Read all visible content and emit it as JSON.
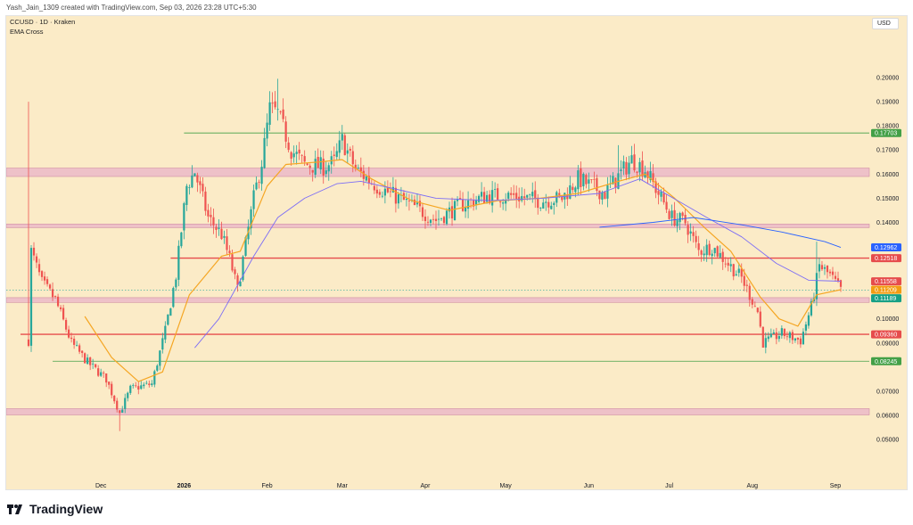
{
  "attribution": "Yash_Jain_1309 created with TradingView.com, Sep 03, 2026 23:28 UTC+5:30",
  "symbol_label": "CCUSD · 1D · Kraken",
  "indicator_label": "EMA Cross",
  "currency_button": "USD",
  "brand": "TradingView",
  "colors": {
    "background": "#fbebc7",
    "up_candle": "#26a69a",
    "down_candle": "#ef5350",
    "ema_fast": "#f5a623",
    "ema_slow": "#7b6cf6",
    "zone_fill": "#e9b3c8",
    "red_level": "#e64c4c",
    "green_level": "#43a047"
  },
  "chart_data": {
    "type": "candlestick",
    "title": "CCUSD · 1D · Kraken",
    "ylim": [
      0.0445,
      0.2085
    ],
    "y_ticks": [
      "0.20000",
      "0.19000",
      "0.18000",
      "0.17000",
      "0.16000",
      "0.15000",
      "0.14000",
      "0.10000",
      "0.09000",
      "0.07000",
      "0.06000",
      "0.05000"
    ],
    "x_labels": [
      {
        "label": "Dec",
        "date": "2025-12-01"
      },
      {
        "label": "2026",
        "date": "2026-01-01"
      },
      {
        "label": "Feb",
        "date": "2026-02-01"
      },
      {
        "label": "Mar",
        "date": "2026-03-01"
      },
      {
        "label": "Apr",
        "date": "2026-04-01"
      },
      {
        "label": "May",
        "date": "2026-05-01"
      },
      {
        "label": "Jun",
        "date": "2026-06-01"
      },
      {
        "label": "Jul",
        "date": "2026-07-01"
      },
      {
        "label": "Aug",
        "date": "2026-08-01"
      },
      {
        "label": "Sep",
        "date": "2026-09-01"
      }
    ],
    "date_range": [
      "2025-11-04",
      "2026-09-03"
    ],
    "price_path": [
      [
        "2025-11-04",
        0.091
      ],
      [
        "2025-11-05",
        0.128
      ],
      [
        "2025-11-09",
        0.115
      ],
      [
        "2025-11-14",
        0.108
      ],
      [
        "2025-11-20",
        0.09
      ],
      [
        "2025-11-26",
        0.082
      ],
      [
        "2025-12-03",
        0.075
      ],
      [
        "2025-12-08",
        0.061
      ],
      [
        "2025-12-12",
        0.071
      ],
      [
        "2025-12-20",
        0.073
      ],
      [
        "2025-12-25",
        0.095
      ],
      [
        "2025-12-29",
        0.118
      ],
      [
        "2026-01-02",
        0.155
      ],
      [
        "2026-01-05",
        0.161
      ],
      [
        "2026-01-10",
        0.142
      ],
      [
        "2026-01-15",
        0.135
      ],
      [
        "2026-01-18",
        0.125
      ],
      [
        "2026-01-21",
        0.112
      ],
      [
        "2026-01-27",
        0.15
      ],
      [
        "2026-01-30",
        0.165
      ],
      [
        "2026-02-02",
        0.187
      ],
      [
        "2026-02-05",
        0.185
      ],
      [
        "2026-02-10",
        0.17
      ],
      [
        "2026-02-15",
        0.164
      ],
      [
        "2026-02-22",
        0.163
      ],
      [
        "2026-02-26",
        0.165
      ],
      [
        "2026-03-01",
        0.174
      ],
      [
        "2026-03-06",
        0.162
      ],
      [
        "2026-03-14",
        0.155
      ],
      [
        "2026-03-22",
        0.15
      ],
      [
        "2026-03-30",
        0.145
      ],
      [
        "2026-04-05",
        0.141
      ],
      [
        "2026-04-14",
        0.147
      ],
      [
        "2026-04-24",
        0.151
      ],
      [
        "2026-05-04",
        0.151
      ],
      [
        "2026-05-14",
        0.149
      ],
      [
        "2026-05-22",
        0.15
      ],
      [
        "2026-05-28",
        0.158
      ],
      [
        "2026-06-02",
        0.155
      ],
      [
        "2026-06-07",
        0.152
      ],
      [
        "2026-06-12",
        0.159
      ],
      [
        "2026-06-17",
        0.166
      ],
      [
        "2026-06-22",
        0.162
      ],
      [
        "2026-06-27",
        0.152
      ],
      [
        "2026-07-02",
        0.142
      ],
      [
        "2026-07-07",
        0.14
      ],
      [
        "2026-07-12",
        0.128
      ],
      [
        "2026-07-17",
        0.13
      ],
      [
        "2026-07-22",
        0.124
      ],
      [
        "2026-07-28",
        0.117
      ],
      [
        "2026-08-03",
        0.103
      ],
      [
        "2026-08-05",
        0.09
      ],
      [
        "2026-08-12",
        0.094
      ],
      [
        "2026-08-19",
        0.091
      ],
      [
        "2026-08-23",
        0.105
      ],
      [
        "2026-08-26",
        0.122
      ],
      [
        "2026-08-30",
        0.118
      ],
      [
        "2026-09-03",
        0.1119
      ]
    ],
    "candle_extremes": [
      {
        "date": "2025-11-04",
        "high": 0.19
      },
      {
        "date": "2025-12-08",
        "low": 0.0535
      },
      {
        "date": "2026-02-05",
        "high": 0.1995
      },
      {
        "date": "2026-06-12",
        "high": 0.172
      },
      {
        "date": "2026-08-05",
        "low": 0.0885
      },
      {
        "date": "2026-08-25",
        "high": 0.132
      }
    ],
    "series": [
      {
        "name": "EMA fast",
        "points": [
          [
            "2025-11-25",
            0.101
          ],
          [
            "2025-12-05",
            0.084
          ],
          [
            "2025-12-15",
            0.074
          ],
          [
            "2025-12-24",
            0.078
          ],
          [
            "2026-01-03",
            0.11
          ],
          [
            "2026-01-15",
            0.126
          ],
          [
            "2026-01-22",
            0.128
          ],
          [
            "2026-02-01",
            0.155
          ],
          [
            "2026-02-08",
            0.164
          ],
          [
            "2026-02-20",
            0.165
          ],
          [
            "2026-03-01",
            0.166
          ],
          [
            "2026-03-12",
            0.158
          ],
          [
            "2026-03-27",
            0.149
          ],
          [
            "2026-04-10",
            0.145
          ],
          [
            "2026-04-28",
            0.149
          ],
          [
            "2026-05-14",
            0.15
          ],
          [
            "2026-05-28",
            0.152
          ],
          [
            "2026-06-12",
            0.157
          ],
          [
            "2026-06-22",
            0.16
          ],
          [
            "2026-07-03",
            0.15
          ],
          [
            "2026-07-14",
            0.138
          ],
          [
            "2026-07-24",
            0.128
          ],
          [
            "2026-08-04",
            0.109
          ],
          [
            "2026-08-11",
            0.1
          ],
          [
            "2026-08-18",
            0.097
          ],
          [
            "2026-08-25",
            0.11
          ],
          [
            "2026-09-03",
            0.1121
          ]
        ]
      },
      {
        "name": "EMA slow",
        "points": [
          [
            "2026-01-05",
            0.088
          ],
          [
            "2026-01-14",
            0.1
          ],
          [
            "2026-01-27",
            0.126
          ],
          [
            "2026-02-05",
            0.142
          ],
          [
            "2026-02-15",
            0.15
          ],
          [
            "2026-02-27",
            0.156
          ],
          [
            "2026-03-08",
            0.157
          ],
          [
            "2026-03-20",
            0.154
          ],
          [
            "2026-04-05",
            0.15
          ],
          [
            "2026-04-25",
            0.149
          ],
          [
            "2026-05-15",
            0.15
          ],
          [
            "2026-06-05",
            0.152
          ],
          [
            "2026-06-20",
            0.158
          ],
          [
            "2026-07-01",
            0.151
          ],
          [
            "2026-07-15",
            0.142
          ],
          [
            "2026-07-28",
            0.134
          ],
          [
            "2026-08-10",
            0.123
          ],
          [
            "2026-08-22",
            0.116
          ],
          [
            "2026-09-03",
            0.1156
          ]
        ]
      },
      {
        "name": "Long-term trend",
        "points": [
          [
            "2026-06-05",
            0.138
          ],
          [
            "2026-06-25",
            0.14
          ],
          [
            "2026-07-10",
            0.142
          ],
          [
            "2026-07-28",
            0.139
          ],
          [
            "2026-08-12",
            0.136
          ],
          [
            "2026-08-28",
            0.132
          ],
          [
            "2026-09-03",
            0.1296
          ]
        ]
      }
    ],
    "support_resistance_zones": [
      [
        0.159,
        0.1625
      ],
      [
        0.1378,
        0.1393
      ],
      [
        0.1068,
        0.1088
      ],
      [
        0.0602,
        0.0628
      ]
    ],
    "horizontal_levels": [
      {
        "value": 0.17703,
        "label": "0.17703",
        "color": "#43a047",
        "start": "2026-01-01"
      },
      {
        "value": 0.12518,
        "label": "0.12518",
        "color": "#e64c4c",
        "start": "2025-12-27"
      },
      {
        "value": 0.0936,
        "label": "0.09360",
        "color": "#e64c4c",
        "start": "2025-11-01"
      },
      {
        "value": 0.08245,
        "label": "0.08245",
        "color": "#43a047",
        "start": "2025-11-13"
      }
    ],
    "last_price": 0.1119,
    "price_badges": [
      {
        "value": 0.12962,
        "label": "0.12962",
        "color": "#2962ff"
      },
      {
        "value": 0.12518,
        "label": "0.12518",
        "color": "#e64c4c"
      },
      {
        "value": 0.11558,
        "label": "0.11558",
        "color": "#e64c4c"
      },
      {
        "value": 0.11209,
        "label": "0.11209",
        "color": "#f39c12"
      },
      {
        "value": 0.11189,
        "label": "0.11189",
        "color": "#16a085"
      }
    ]
  }
}
